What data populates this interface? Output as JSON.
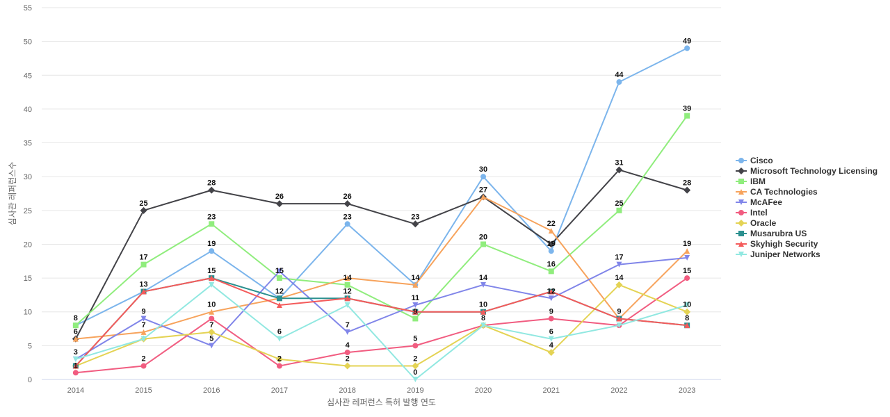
{
  "chart_data": {
    "type": "line",
    "title": "",
    "xlabel": "심사관 레퍼런스 특허 발행 연도",
    "ylabel": "심사관 레퍼런스수",
    "categories": [
      "2014",
      "2015",
      "2016",
      "2017",
      "2018",
      "2019",
      "2020",
      "2021",
      "2022",
      "2023"
    ],
    "ylim": [
      0,
      55
    ],
    "yticks": [
      0,
      5,
      10,
      15,
      20,
      25,
      30,
      35,
      40,
      45,
      50,
      55
    ],
    "grid": true,
    "legend_position": "right",
    "series": [
      {
        "name": "Cisco",
        "color": "#7cb5ec",
        "marker": "circle",
        "values": [
          8,
          13,
          19,
          12,
          23,
          14,
          30,
          19,
          44,
          49
        ]
      },
      {
        "name": "Microsoft Technology Licensing",
        "color": "#434348",
        "marker": "diamond",
        "values": [
          6,
          25,
          28,
          26,
          26,
          23,
          27,
          20,
          31,
          28
        ]
      },
      {
        "name": "IBM",
        "color": "#90ed7d",
        "marker": "square",
        "values": [
          8,
          17,
          23,
          15,
          14,
          9,
          20,
          16,
          25,
          39
        ]
      },
      {
        "name": "CA Technologies",
        "color": "#f7a35c",
        "marker": "triangle",
        "values": [
          6,
          7,
          10,
          12,
          15,
          14,
          27,
          22,
          9,
          19
        ]
      },
      {
        "name": "McAFee",
        "color": "#8085e9",
        "marker": "triangle-down",
        "values": [
          3,
          9,
          5,
          16,
          7,
          11,
          14,
          12,
          17,
          18
        ]
      },
      {
        "name": "Intel",
        "color": "#f15c80",
        "marker": "circle",
        "values": [
          1,
          2,
          9,
          2,
          4,
          5,
          8,
          9,
          8,
          15
        ]
      },
      {
        "name": "Oracle",
        "color": "#e4d354",
        "marker": "diamond",
        "values": [
          2,
          6,
          7,
          3,
          2,
          2,
          8,
          4,
          14,
          10
        ]
      },
      {
        "name": "Musarubra US",
        "color": "#2b908f",
        "marker": "square",
        "values": [
          2,
          13,
          15,
          12,
          12,
          10,
          10,
          13,
          9,
          8
        ]
      },
      {
        "name": "Skyhigh Security",
        "color": "#f45b5b",
        "marker": "triangle",
        "values": [
          2,
          13,
          15,
          11,
          12,
          10,
          10,
          13,
          9,
          8
        ]
      },
      {
        "name": "Juniper Networks",
        "color": "#91e8e1",
        "marker": "triangle-down",
        "values": [
          3,
          6,
          14,
          6,
          11,
          0,
          8,
          6,
          8,
          11
        ]
      }
    ],
    "data_labels": [
      {
        "x": "2014",
        "value": 8
      },
      {
        "x": "2014",
        "value": 6
      },
      {
        "x": "2014",
        "value": 3
      },
      {
        "x": "2014",
        "value": 1
      },
      {
        "x": "2015",
        "value": 25
      },
      {
        "x": "2015",
        "value": 17
      },
      {
        "x": "2015",
        "value": 13
      },
      {
        "x": "2015",
        "value": 9
      },
      {
        "x": "2015",
        "value": 7
      },
      {
        "x": "2015",
        "value": 2
      },
      {
        "x": "2016",
        "value": 28
      },
      {
        "x": "2016",
        "value": 23
      },
      {
        "x": "2016",
        "value": 19
      },
      {
        "x": "2016",
        "value": 15
      },
      {
        "x": "2016",
        "value": 10
      },
      {
        "x": "2016",
        "value": 7
      },
      {
        "x": "2016",
        "value": 5
      },
      {
        "x": "2017",
        "value": 26
      },
      {
        "x": "2017",
        "value": 15
      },
      {
        "x": "2017",
        "value": 12
      },
      {
        "x": "2017",
        "value": 6
      },
      {
        "x": "2017",
        "value": 2
      },
      {
        "x": "2018",
        "value": 26
      },
      {
        "x": "2018",
        "value": 23
      },
      {
        "x": "2018",
        "value": 14
      },
      {
        "x": "2018",
        "value": 12
      },
      {
        "x": "2018",
        "value": 7
      },
      {
        "x": "2018",
        "value": 4
      },
      {
        "x": "2018",
        "value": 2
      },
      {
        "x": "2019",
        "value": 23
      },
      {
        "x": "2019",
        "value": 14
      },
      {
        "x": "2019",
        "value": 11
      },
      {
        "x": "2019",
        "value": 9
      },
      {
        "x": "2019",
        "value": 5
      },
      {
        "x": "2019",
        "value": 2
      },
      {
        "x": "2019",
        "value": 0
      },
      {
        "x": "2020",
        "value": 30
      },
      {
        "x": "2020",
        "value": 27
      },
      {
        "x": "2020",
        "value": 20
      },
      {
        "x": "2020",
        "value": 14
      },
      {
        "x": "2020",
        "value": 10
      },
      {
        "x": "2020",
        "value": 8
      },
      {
        "x": "2021",
        "value": 22
      },
      {
        "x": "2021",
        "value": 19
      },
      {
        "x": "2021",
        "value": 16
      },
      {
        "x": "2021",
        "value": 12
      },
      {
        "x": "2021",
        "value": 9
      },
      {
        "x": "2021",
        "value": 6
      },
      {
        "x": "2021",
        "value": 4
      },
      {
        "x": "2022",
        "value": 44
      },
      {
        "x": "2022",
        "value": 31
      },
      {
        "x": "2022",
        "value": 25
      },
      {
        "x": "2022",
        "value": 17
      },
      {
        "x": "2022",
        "value": 14
      },
      {
        "x": "2022",
        "value": 9
      },
      {
        "x": "2023",
        "value": 49
      },
      {
        "x": "2023",
        "value": 39
      },
      {
        "x": "2023",
        "value": 28
      },
      {
        "x": "2023",
        "value": 19
      },
      {
        "x": "2023",
        "value": 15
      },
      {
        "x": "2023",
        "value": 10
      },
      {
        "x": "2023",
        "value": 8
      }
    ]
  }
}
